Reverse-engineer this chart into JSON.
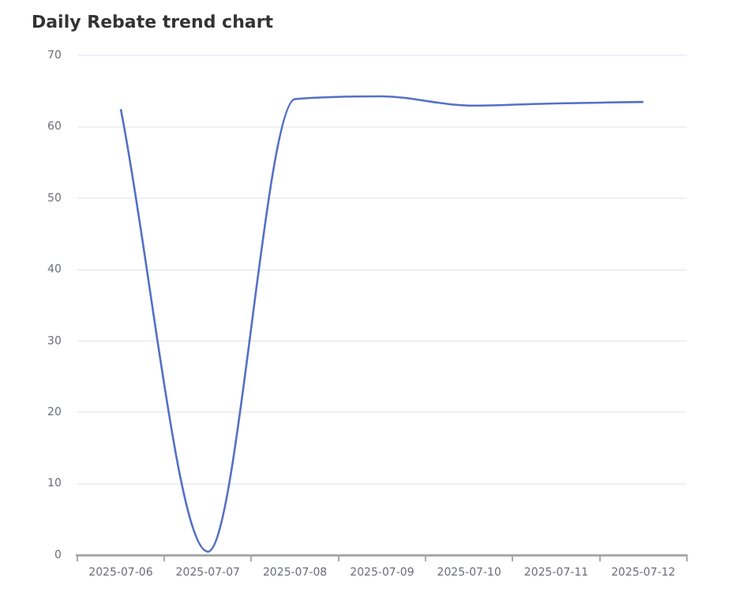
{
  "chart_data": {
    "type": "line",
    "title": "Daily Rebate trend chart",
    "categories": [
      "2025-07-06",
      "2025-07-07",
      "2025-07-08",
      "2025-07-09",
      "2025-07-10",
      "2025-07-11",
      "2025-07-12"
    ],
    "series": [
      {
        "color": "#5470c6",
        "values": [
          62.5,
          0.5,
          63.9,
          64.3,
          63.0,
          63.3,
          63.5
        ]
      }
    ],
    "ylim": [
      0,
      70
    ],
    "yticks": [
      0,
      10,
      20,
      30,
      40,
      50,
      60,
      70
    ],
    "grid": "y",
    "legend": false,
    "marker": "none",
    "line_style": "solid"
  }
}
